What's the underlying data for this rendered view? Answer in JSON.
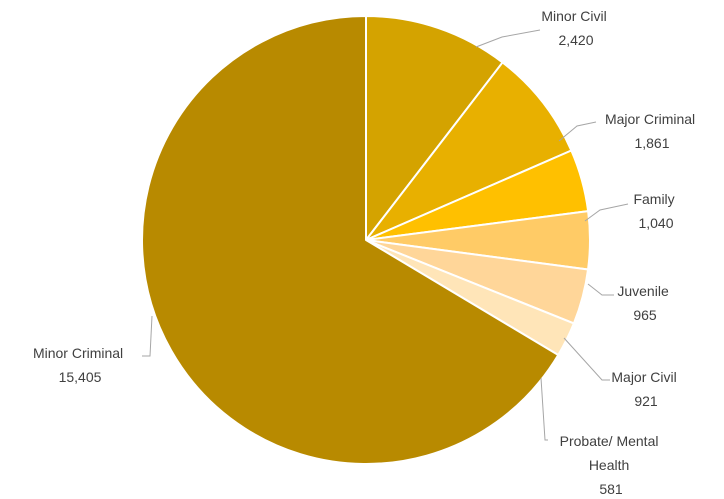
{
  "chart_data": {
    "type": "pie",
    "title": "",
    "slices": [
      {
        "name": "Minor Criminal",
        "value": 15405,
        "value_label": "15,405",
        "color": "#b88a00"
      },
      {
        "name": "Minor Civil",
        "value": 2420,
        "value_label": "2,420",
        "color": "#d4a300"
      },
      {
        "name": "Major Criminal",
        "value": 1861,
        "value_label": "1,861",
        "color": "#e8b000"
      },
      {
        "name": "Family",
        "value": 1040,
        "value_label": "1,040",
        "color": "#ffc000"
      },
      {
        "name": "Juvenile",
        "value": 965,
        "value_label": "965",
        "color": "#ffcb66"
      },
      {
        "name": "Major Civil",
        "value": 921,
        "value_label": "921",
        "color": "#ffd699"
      },
      {
        "name": "Probate/ Mental Health",
        "value": 581,
        "value_label": "581",
        "color": "#ffe5b8"
      }
    ],
    "legend": "none",
    "data_labels": "outside with leader lines"
  }
}
